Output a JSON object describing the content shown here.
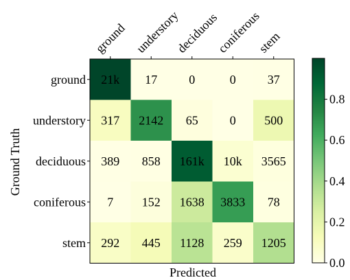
{
  "chart_data": {
    "type": "heatmap",
    "title": "",
    "xlabel": "Predicted",
    "ylabel": "Ground Truth",
    "x_categories": [
      "ground",
      "understory",
      "deciduous",
      "coniferous",
      "stem"
    ],
    "y_categories": [
      "ground",
      "understory",
      "deciduous",
      "coniferous",
      "stem"
    ],
    "cell_labels": [
      [
        "21k",
        "17",
        "0",
        "0",
        "37"
      ],
      [
        "317",
        "2142",
        "65",
        "0",
        "500"
      ],
      [
        "389",
        "858",
        "161k",
        "10k",
        "3565"
      ],
      [
        "7",
        "152",
        "1638",
        "3833",
        "78"
      ],
      [
        "292",
        "445",
        "1128",
        "259",
        "1205"
      ]
    ],
    "normalized_values": [
      [
        0.9985,
        0.0008,
        0.0,
        0.0,
        0.0018
      ],
      [
        0.105,
        0.709,
        0.0215,
        0.0,
        0.1655
      ],
      [
        0.0022,
        0.0049,
        0.919,
        0.057,
        0.0203
      ],
      [
        0.0012,
        0.0266,
        0.2863,
        0.6701,
        0.0136
      ],
      [
        0.0876,
        0.1335,
        0.3384,
        0.0777,
        0.3615
      ]
    ],
    "colorbar": {
      "range": [
        0.0,
        1.0
      ],
      "ticks": [
        "0.0",
        "0.2",
        "0.4",
        "0.6",
        "0.8"
      ],
      "tick_values": [
        0.0,
        0.2,
        0.4,
        0.6,
        0.8
      ],
      "colormap": "Greens",
      "colormap_stops": [
        "#ffffe5",
        "#f7fcb9",
        "#d9f0a3",
        "#addd8e",
        "#78c679",
        "#41ab5d",
        "#238443",
        "#006837",
        "#004529"
      ]
    }
  }
}
